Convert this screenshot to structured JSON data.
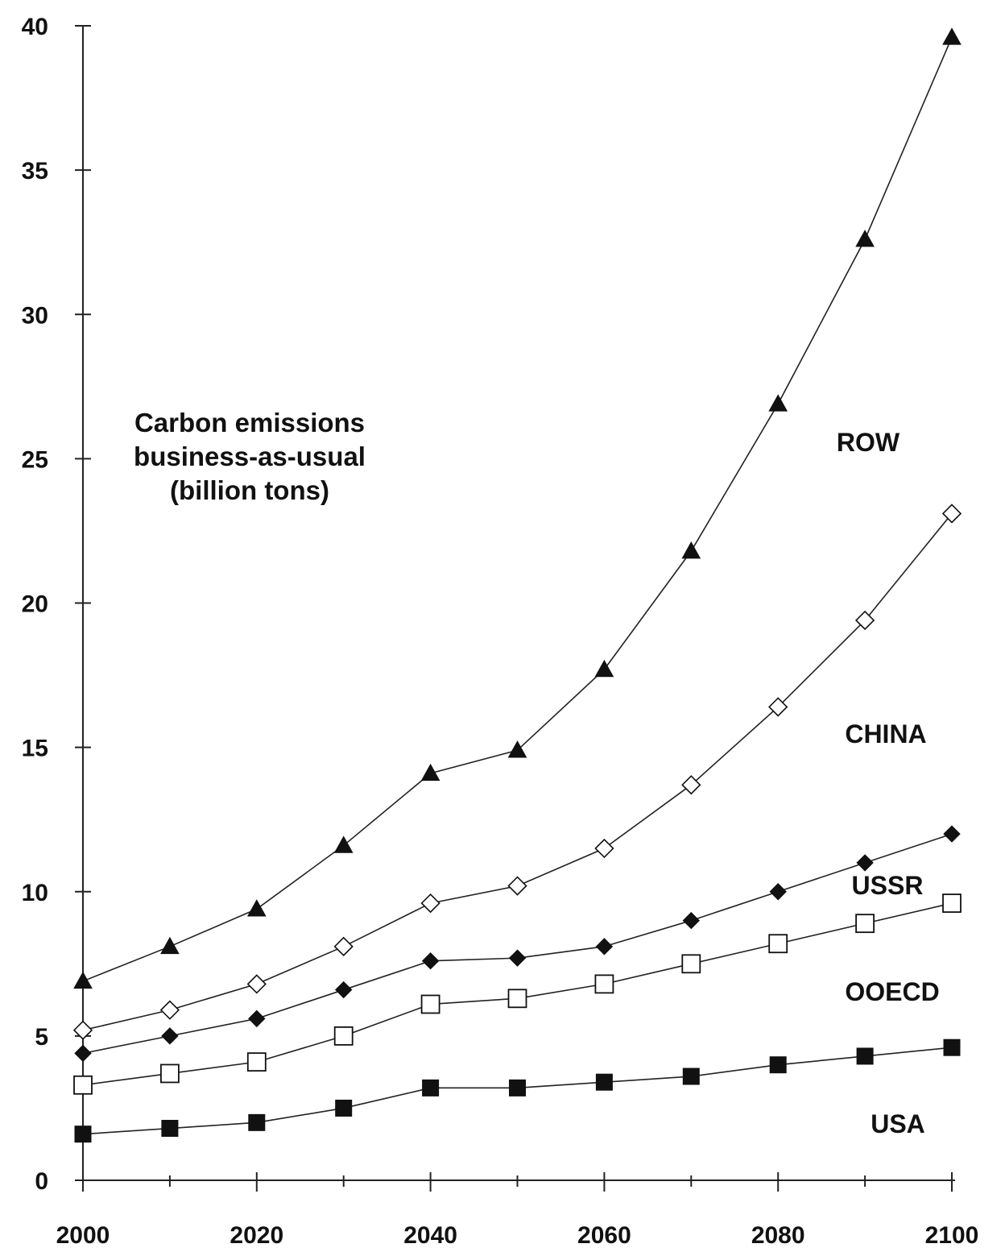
{
  "chart_data": {
    "type": "line",
    "ylabel": [
      "Carbon emissions",
      "business-as-usual",
      "(billion tons)"
    ],
    "xlabel": "",
    "x": [
      2000,
      2010,
      2020,
      2030,
      2040,
      2050,
      2060,
      2070,
      2080,
      2090,
      2100
    ],
    "xticks": [
      "2000",
      "2020",
      "2040",
      "2060",
      "2080",
      "2100"
    ],
    "yticks": [
      "0",
      "5",
      "10",
      "15",
      "20",
      "25",
      "30",
      "35",
      "40"
    ],
    "xlim": [
      2000,
      2100
    ],
    "ylim": [
      0,
      40
    ],
    "grid": false,
    "legend": "none",
    "series": [
      {
        "name": "ROW",
        "marker": "filled-triangle",
        "values": [
          6.9,
          8.1,
          9.4,
          11.6,
          14.1,
          14.9,
          17.7,
          21.8,
          26.9,
          32.6,
          39.6
        ]
      },
      {
        "name": "CHINA",
        "marker": "open-diamond",
        "values": [
          5.2,
          5.9,
          6.8,
          8.1,
          9.6,
          10.2,
          11.5,
          13.7,
          16.4,
          19.4,
          23.1
        ]
      },
      {
        "name": "USSR",
        "marker": "filled-diamond",
        "values": [
          4.4,
          5.0,
          5.6,
          6.6,
          7.6,
          7.7,
          8.1,
          9.0,
          10.0,
          11.0,
          12.0
        ]
      },
      {
        "name": "OOECD",
        "marker": "open-square",
        "values": [
          3.3,
          3.7,
          4.1,
          5.0,
          6.1,
          6.3,
          6.8,
          7.5,
          8.2,
          8.9,
          9.6
        ]
      },
      {
        "name": "USA",
        "marker": "filled-square",
        "values": [
          1.6,
          1.8,
          2.0,
          2.5,
          3.2,
          3.2,
          3.4,
          3.6,
          4.0,
          4.3,
          4.6
        ]
      }
    ],
    "colors": {
      "ink": "#111111",
      "background": "#ffffff"
    }
  }
}
